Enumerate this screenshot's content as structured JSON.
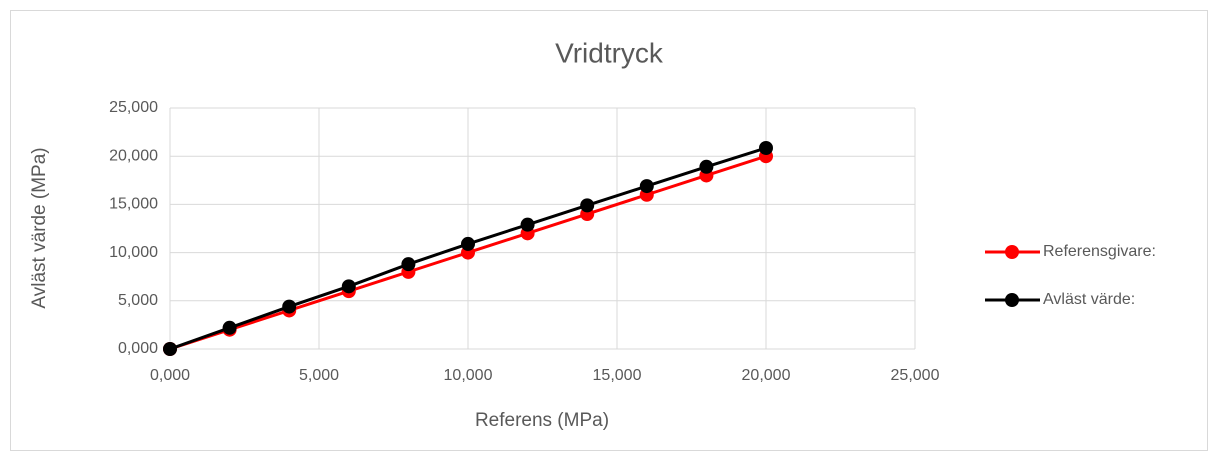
{
  "chart_data": {
    "type": "line",
    "title": "Vridtryck",
    "xlabel": "Referens (MPa)",
    "ylabel": "Avläst värde (MPa)",
    "x": [
      0,
      2,
      4,
      6,
      8,
      10,
      12,
      14,
      16,
      18,
      20
    ],
    "series": [
      {
        "name": "Referensgivare:",
        "color": "#ff0000",
        "values": [
          0,
          2,
          4,
          6,
          8,
          10,
          12,
          14,
          16,
          18,
          20
        ]
      },
      {
        "name": "Avläst värde:",
        "color": "#000000",
        "values": [
          0,
          2.2,
          4.4,
          6.5,
          8.8,
          10.9,
          12.9,
          14.9,
          16.9,
          18.9,
          20.85
        ]
      }
    ],
    "xlim": [
      0,
      25
    ],
    "ylim": [
      0,
      25
    ],
    "xticks": [
      {
        "value": 0,
        "label": "0,000"
      },
      {
        "value": 5,
        "label": "5,000"
      },
      {
        "value": 10,
        "label": "10,000"
      },
      {
        "value": 15,
        "label": "15,000"
      },
      {
        "value": 20,
        "label": "20,000"
      },
      {
        "value": 25,
        "label": "25,000"
      }
    ],
    "yticks": [
      {
        "value": 0,
        "label": "0,000"
      },
      {
        "value": 5,
        "label": "5,000"
      },
      {
        "value": 10,
        "label": "10,000"
      },
      {
        "value": 15,
        "label": "15,000"
      },
      {
        "value": 20,
        "label": "20,000"
      },
      {
        "value": 25,
        "label": "25,000"
      }
    ],
    "grid": true,
    "legend": "right"
  }
}
